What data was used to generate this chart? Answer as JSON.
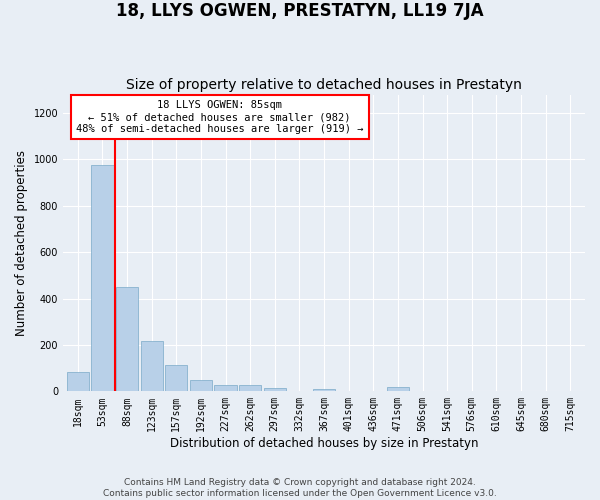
{
  "title": "18, LLYS OGWEN, PRESTATYN, LL19 7JA",
  "subtitle": "Size of property relative to detached houses in Prestatyn",
  "xlabel": "Distribution of detached houses by size in Prestatyn",
  "ylabel": "Number of detached properties",
  "categories": [
    "18sqm",
    "53sqm",
    "88sqm",
    "123sqm",
    "157sqm",
    "192sqm",
    "227sqm",
    "262sqm",
    "297sqm",
    "332sqm",
    "367sqm",
    "401sqm",
    "436sqm",
    "471sqm",
    "506sqm",
    "541sqm",
    "576sqm",
    "610sqm",
    "645sqm",
    "680sqm",
    "715sqm"
  ],
  "values": [
    85,
    975,
    450,
    215,
    115,
    50,
    28,
    28,
    15,
    0,
    10,
    0,
    0,
    18,
    0,
    0,
    0,
    0,
    0,
    0,
    0
  ],
  "bar_color": "#b8d0e8",
  "bar_edge_color": "#7aaac8",
  "vline_x": 1.5,
  "vline_color": "red",
  "annotation_text": "18 LLYS OGWEN: 85sqm\n← 51% of detached houses are smaller (982)\n48% of semi-detached houses are larger (919) →",
  "annotation_box_color": "white",
  "annotation_box_edge_color": "red",
  "ylim": [
    0,
    1280
  ],
  "yticks": [
    0,
    200,
    400,
    600,
    800,
    1000,
    1200
  ],
  "footnote": "Contains HM Land Registry data © Crown copyright and database right 2024.\nContains public sector information licensed under the Open Government Licence v3.0.",
  "bg_color": "#e8eef5",
  "plot_bg_color": "#e8eef5",
  "grid_color": "white",
  "title_fontsize": 12,
  "subtitle_fontsize": 10,
  "label_fontsize": 8.5,
  "tick_fontsize": 7,
  "footnote_fontsize": 6.5
}
